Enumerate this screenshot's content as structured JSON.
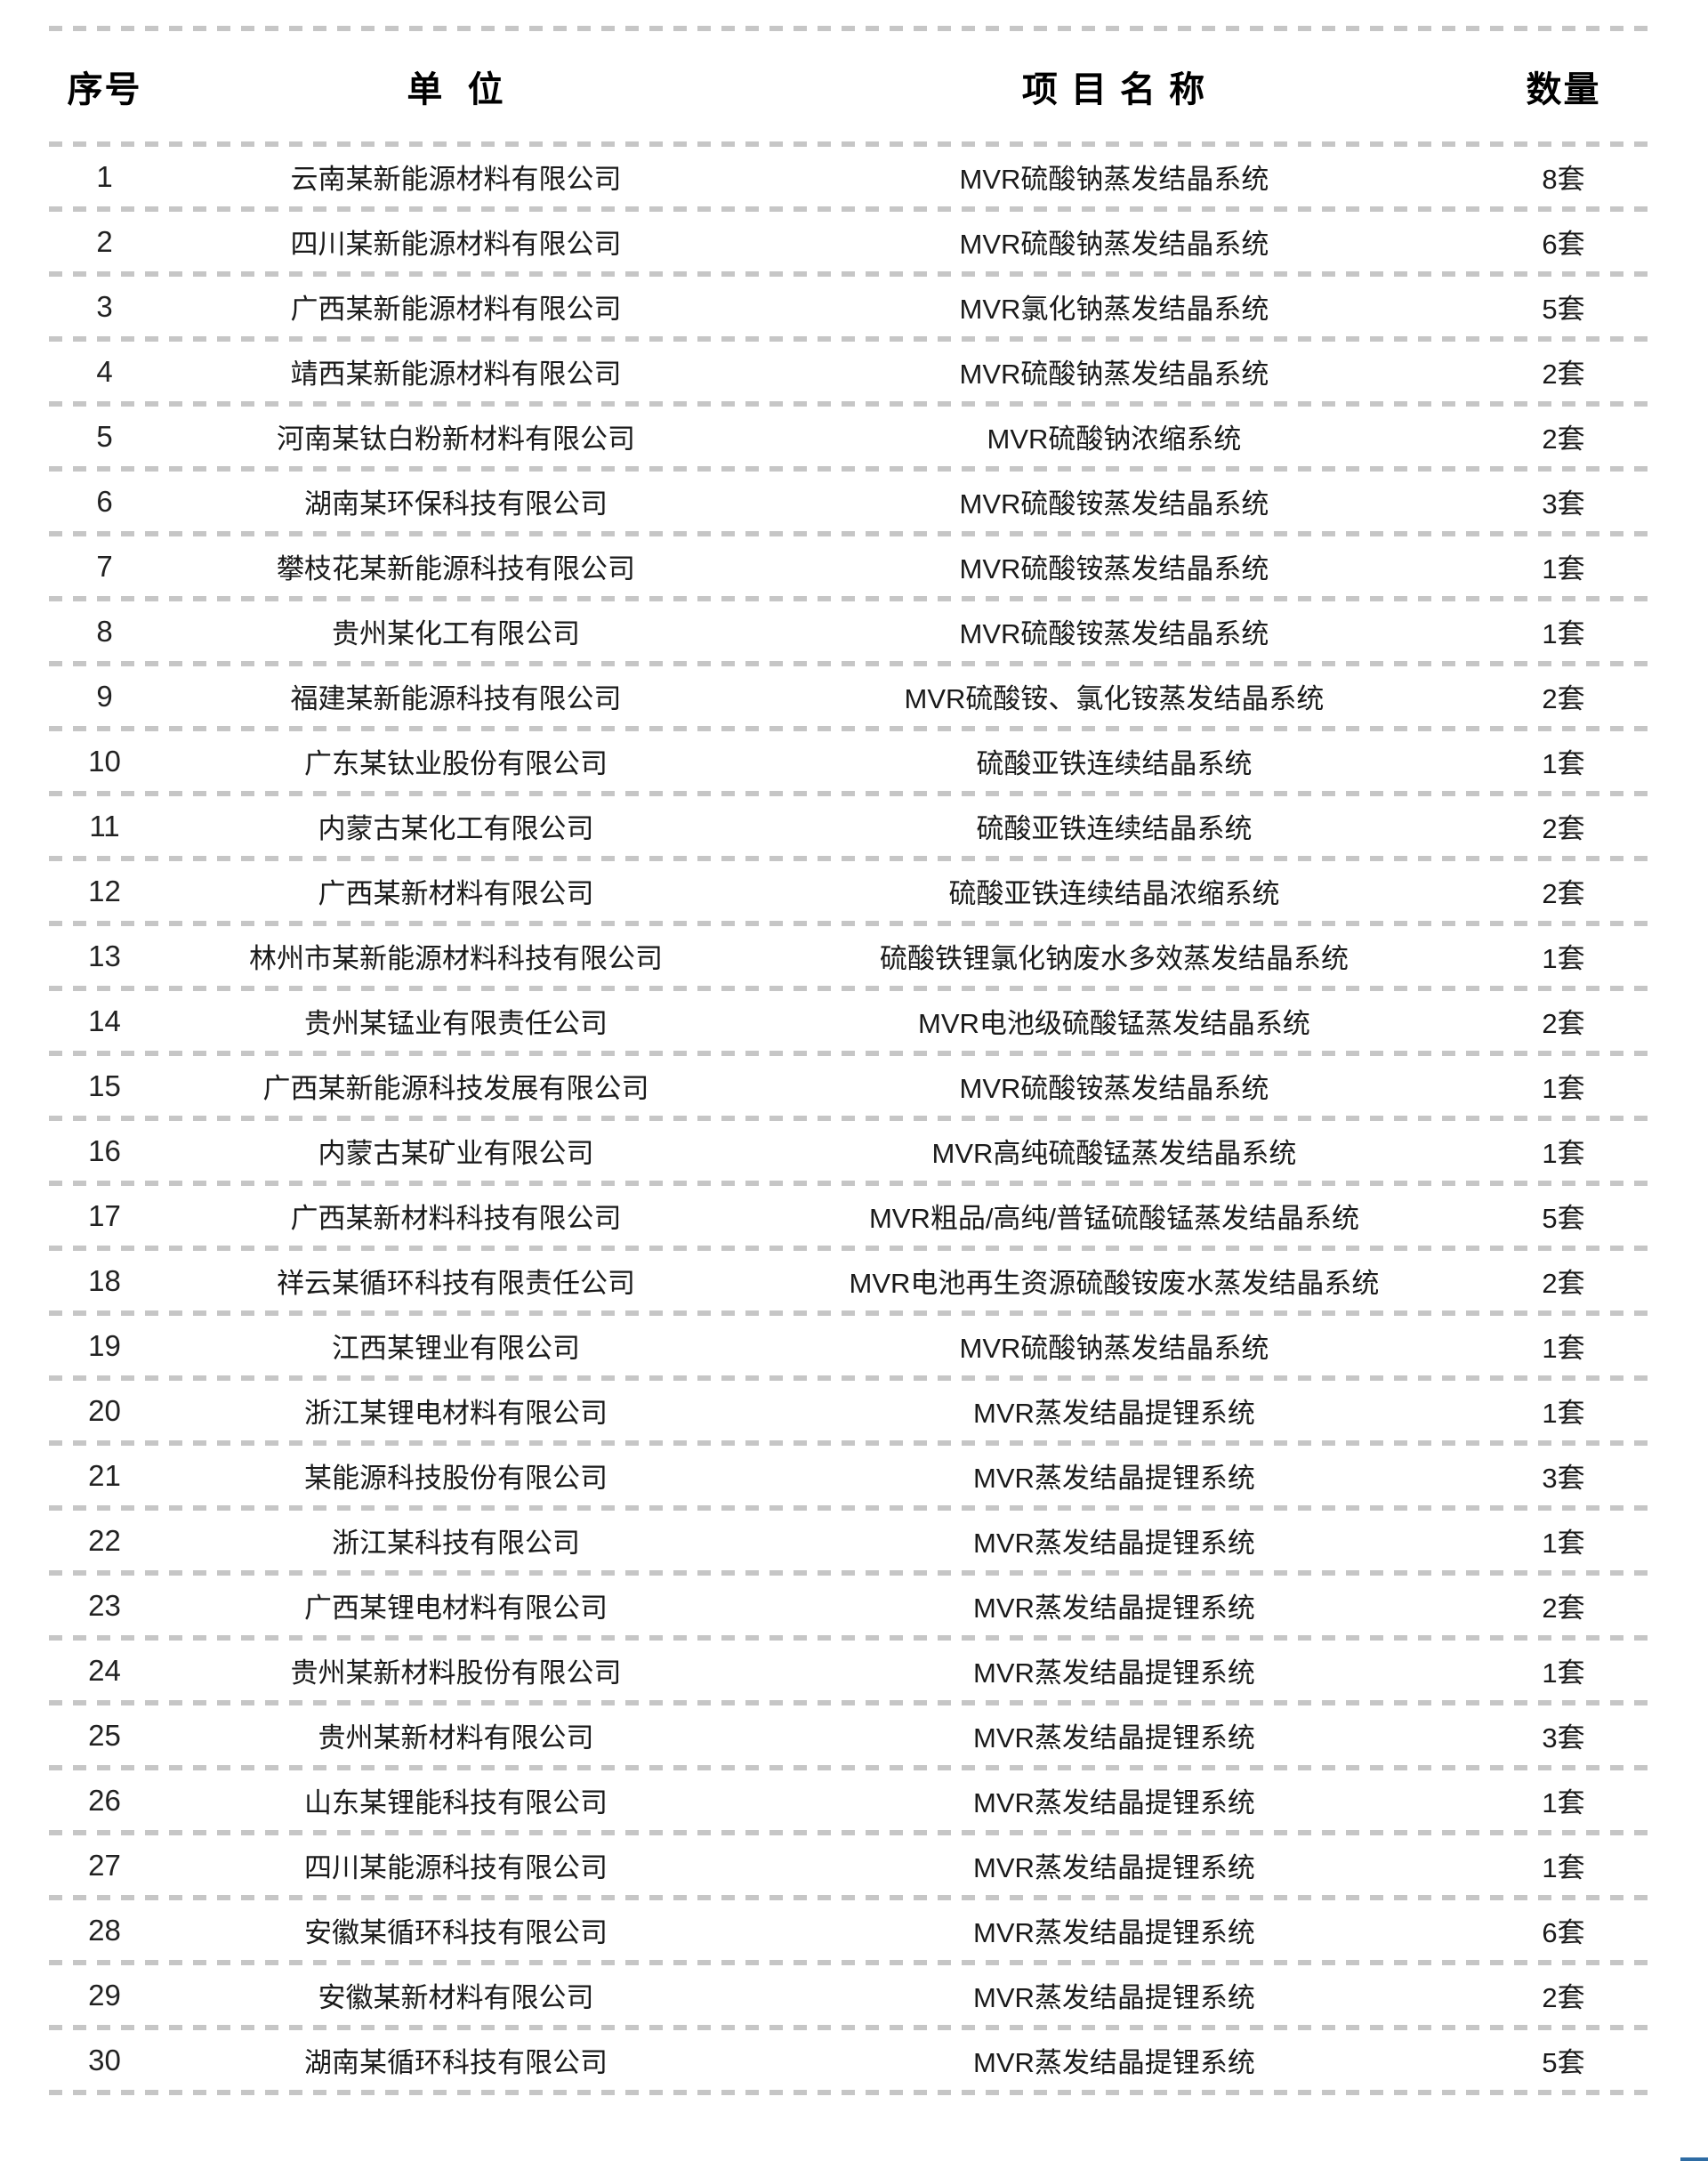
{
  "colors": {
    "divider": "#c6c6c6",
    "corner_accent": "#2e6ca4"
  },
  "table": {
    "headers": {
      "no": "序号",
      "company": "单  位",
      "project": "项 目 名 称",
      "qty": "数量"
    },
    "rows": [
      {
        "no": "1",
        "company": "云南某新能源材料有限公司",
        "project": "MVR硫酸钠蒸发结晶系统",
        "qty": "8套"
      },
      {
        "no": "2",
        "company": "四川某新能源材料有限公司",
        "project": "MVR硫酸钠蒸发结晶系统",
        "qty": "6套"
      },
      {
        "no": "3",
        "company": "广西某新能源材料有限公司",
        "project": "MVR氯化钠蒸发结晶系统",
        "qty": "5套"
      },
      {
        "no": "4",
        "company": "靖西某新能源材料有限公司",
        "project": "MVR硫酸钠蒸发结晶系统",
        "qty": "2套"
      },
      {
        "no": "5",
        "company": "河南某钛白粉新材料有限公司",
        "project": "MVR硫酸钠浓缩系统",
        "qty": "2套"
      },
      {
        "no": "6",
        "company": "湖南某环保科技有限公司",
        "project": "MVR硫酸铵蒸发结晶系统",
        "qty": "3套"
      },
      {
        "no": "7",
        "company": "攀枝花某新能源科技有限公司",
        "project": "MVR硫酸铵蒸发结晶系统",
        "qty": "1套"
      },
      {
        "no": "8",
        "company": "贵州某化工有限公司",
        "project": "MVR硫酸铵蒸发结晶系统",
        "qty": "1套"
      },
      {
        "no": "9",
        "company": "福建某新能源科技有限公司",
        "project": "MVR硫酸铵、氯化铵蒸发结晶系统",
        "qty": "2套"
      },
      {
        "no": "10",
        "company": "广东某钛业股份有限公司",
        "project": "硫酸亚铁连续结晶系统",
        "qty": "1套"
      },
      {
        "no": "11",
        "company": "内蒙古某化工有限公司",
        "project": "硫酸亚铁连续结晶系统",
        "qty": "2套"
      },
      {
        "no": "12",
        "company": "广西某新材料有限公司",
        "project": "硫酸亚铁连续结晶浓缩系统",
        "qty": "2套"
      },
      {
        "no": "13",
        "company": "林州市某新能源材料科技有限公司",
        "project": "硫酸铁锂氯化钠废水多效蒸发结晶系统",
        "qty": "1套"
      },
      {
        "no": "14",
        "company": "贵州某锰业有限责任公司",
        "project": "MVR电池级硫酸锰蒸发结晶系统",
        "qty": "2套"
      },
      {
        "no": "15",
        "company": "广西某新能源科技发展有限公司",
        "project": "MVR硫酸铵蒸发结晶系统",
        "qty": "1套"
      },
      {
        "no": "16",
        "company": "内蒙古某矿业有限公司",
        "project": "MVR高纯硫酸锰蒸发结晶系统",
        "qty": "1套"
      },
      {
        "no": "17",
        "company": "广西某新材料科技有限公司",
        "project": "MVR粗品/高纯/普锰硫酸锰蒸发结晶系统",
        "qty": "5套"
      },
      {
        "no": "18",
        "company": "祥云某循环科技有限责任公司",
        "project": "MVR电池再生资源硫酸铵废水蒸发结晶系统",
        "qty": "2套"
      },
      {
        "no": "19",
        "company": "江西某锂业有限公司",
        "project": "MVR硫酸钠蒸发结晶系统",
        "qty": "1套"
      },
      {
        "no": "20",
        "company": "浙江某锂电材料有限公司",
        "project": "MVR蒸发结晶提锂系统",
        "qty": "1套"
      },
      {
        "no": "21",
        "company": "某能源科技股份有限公司",
        "project": "MVR蒸发结晶提锂系统",
        "qty": "3套"
      },
      {
        "no": "22",
        "company": "浙江某科技有限公司",
        "project": "MVR蒸发结晶提锂系统",
        "qty": "1套"
      },
      {
        "no": "23",
        "company": "广西某锂电材料有限公司",
        "project": "MVR蒸发结晶提锂系统",
        "qty": "2套"
      },
      {
        "no": "24",
        "company": "贵州某新材料股份有限公司",
        "project": "MVR蒸发结晶提锂系统",
        "qty": "1套"
      },
      {
        "no": "25",
        "company": "贵州某新材料有限公司",
        "project": "MVR蒸发结晶提锂系统",
        "qty": "3套"
      },
      {
        "no": "26",
        "company": "山东某锂能科技有限公司",
        "project": "MVR蒸发结晶提锂系统",
        "qty": "1套"
      },
      {
        "no": "27",
        "company": "四川某能源科技有限公司",
        "project": "MVR蒸发结晶提锂系统",
        "qty": "1套"
      },
      {
        "no": "28",
        "company": "安徽某循环科技有限公司",
        "project": "MVR蒸发结晶提锂系统",
        "qty": "6套"
      },
      {
        "no": "29",
        "company": "安徽某新材料有限公司",
        "project": "MVR蒸发结晶提锂系统",
        "qty": "2套"
      },
      {
        "no": "30",
        "company": "湖南某循环科技有限公司",
        "project": "MVR蒸发结晶提锂系统",
        "qty": "5套"
      }
    ]
  }
}
